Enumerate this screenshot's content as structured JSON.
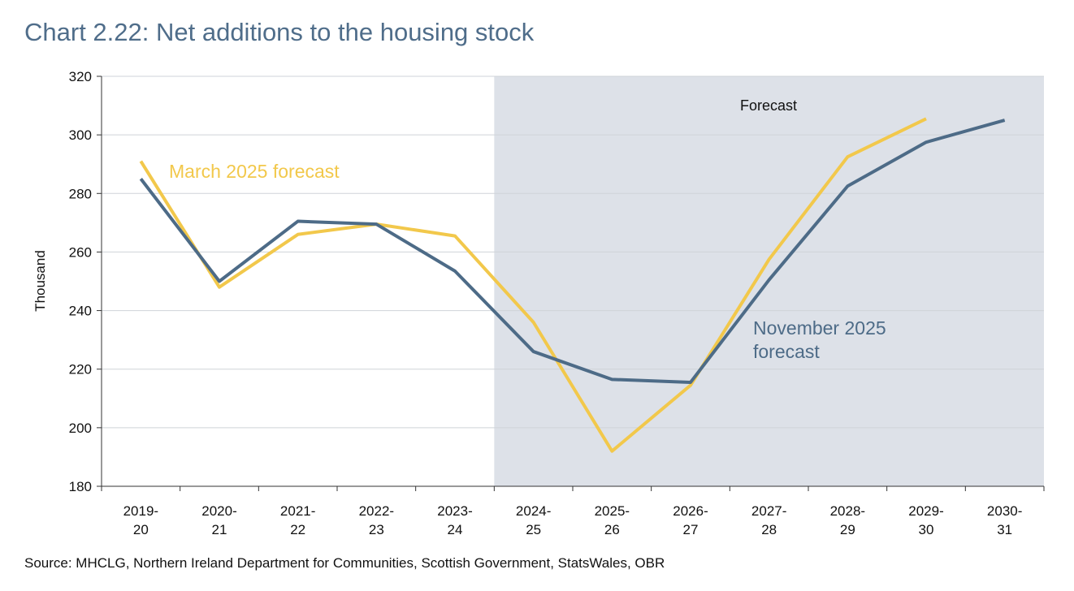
{
  "title": "Chart 2.22: Net additions to the housing stock",
  "source": "Source: MHCLG, Northern Ireland Department for Communities, Scottish Government, StatsWales, OBR",
  "chart_data": {
    "type": "line",
    "title": "Chart 2.22: Net additions to the housing stock",
    "ylabel": "Thousand",
    "xlabel": "",
    "ylim": [
      180,
      320
    ],
    "yticks": [
      180,
      200,
      220,
      240,
      260,
      280,
      300,
      320
    ],
    "grid": true,
    "categories": [
      [
        "2019-",
        "20"
      ],
      [
        "2020-",
        "21"
      ],
      [
        "2021-",
        "22"
      ],
      [
        "2022-",
        "23"
      ],
      [
        "2023-",
        "24"
      ],
      [
        "2024-",
        "25"
      ],
      [
        "2025-",
        "26"
      ],
      [
        "2026-",
        "27"
      ],
      [
        "2027-",
        "28"
      ],
      [
        "2028-",
        "29"
      ],
      [
        "2029-",
        "30"
      ],
      [
        "2030-",
        "31"
      ]
    ],
    "forecast_region": {
      "label": "Forecast",
      "start_after": "2023-24",
      "color": "#dde1e8"
    },
    "series": [
      {
        "name": "March 2025 forecast",
        "color": "#f2c84b",
        "values": [
          291,
          248,
          266,
          269.5,
          265.5,
          236,
          192,
          214.5,
          257.5,
          292.5,
          305.5,
          null
        ]
      },
      {
        "name": "November 2025 forecast",
        "color": "#4d6b87",
        "values": [
          285,
          250,
          270.5,
          269.5,
          253.5,
          226,
          216.5,
          215.5,
          250.5,
          282.5,
          297.5,
          305
        ]
      }
    ]
  }
}
